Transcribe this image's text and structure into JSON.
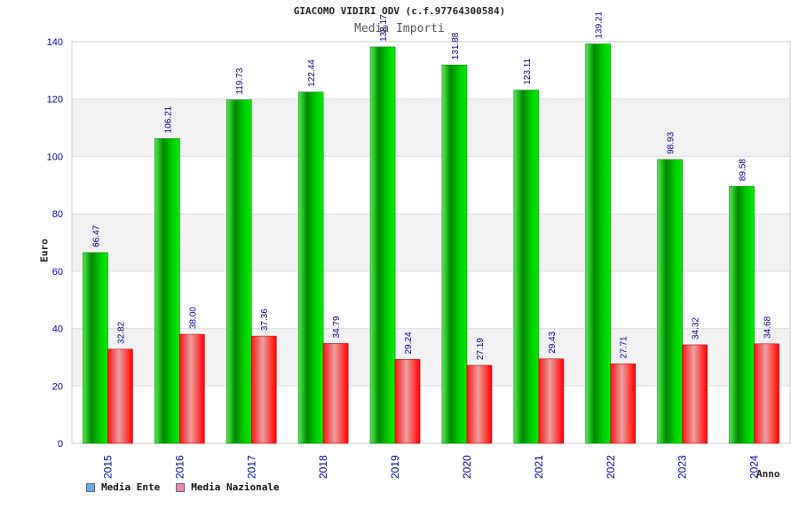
{
  "chart_data": {
    "type": "bar",
    "title": "GIACOMO VIDIRI ODV (c.f.97764300584)",
    "subtitle": "Media Importi",
    "xlabel": "Anno",
    "ylabel": "Euro",
    "ylim": [
      0,
      140
    ],
    "yticks": [
      0,
      20,
      40,
      60,
      80,
      100,
      120,
      140
    ],
    "grid": true,
    "legend_position": "bottom-left",
    "categories": [
      "2015",
      "2016",
      "2017",
      "2018",
      "2019",
      "2020",
      "2021",
      "2022",
      "2023",
      "2024"
    ],
    "series": [
      {
        "name": "Media Ente",
        "color": "#00cc00",
        "legend_color": "#66aaee",
        "values": [
          66.47,
          106.21,
          119.73,
          122.44,
          138.17,
          131.88,
          123.11,
          139.21,
          98.93,
          89.58
        ],
        "labels": [
          "66.47",
          "106.21",
          "119.73",
          "122.44",
          "138.17",
          "131.88",
          "123.11",
          "139.21",
          "98.93",
          "89.58"
        ]
      },
      {
        "name": "Media Nazionale",
        "color": "#ff0000",
        "legend_color": "#ee88bb",
        "values": [
          32.82,
          38.0,
          37.36,
          34.79,
          29.24,
          27.19,
          29.43,
          27.71,
          34.32,
          34.68
        ],
        "labels": [
          "32.82",
          "38.00",
          "37.36",
          "34.79",
          "29.24",
          "27.19",
          "29.43",
          "27.71",
          "34.32",
          "34.68"
        ]
      }
    ]
  }
}
